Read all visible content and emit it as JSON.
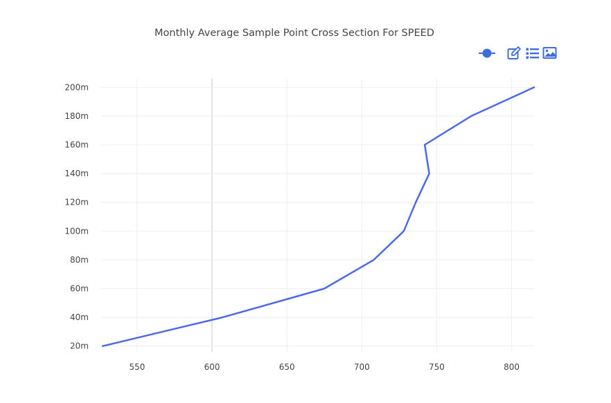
{
  "chart_data": {
    "type": "line",
    "title": "Monthly Average Sample Point Cross Section For SPEED",
    "xlabel": "",
    "ylabel": "",
    "xlim": [
      526,
      815
    ],
    "ylim": [
      16,
      204
    ],
    "x_ticks": [
      550,
      600,
      650,
      700,
      750,
      800
    ],
    "x_tick_labels": [
      "550",
      "600",
      "650",
      "700",
      "750",
      "800"
    ],
    "y_ticks": [
      20,
      40,
      60,
      80,
      100,
      120,
      140,
      160,
      180,
      200
    ],
    "y_tick_labels": [
      "20m",
      "40m",
      "60m",
      "80m",
      "100m",
      "120m",
      "140m",
      "160m",
      "180m",
      "200m"
    ],
    "grid": true,
    "legend": "none",
    "line_color": "#4a68f0",
    "series": [
      {
        "x": [
          527,
          607,
          675,
          708,
          728,
          736,
          745,
          742,
          773,
          815
        ],
        "y": [
          20,
          40,
          60,
          80,
          100,
          120,
          140,
          160,
          180,
          200
        ]
      }
    ]
  },
  "toolbar": {
    "color": "#3d6be0",
    "items": [
      {
        "icon": "line-marker-icon"
      },
      {
        "icon": "edit-icon"
      },
      {
        "icon": "list-icon"
      },
      {
        "icon": "image-icon"
      }
    ]
  }
}
